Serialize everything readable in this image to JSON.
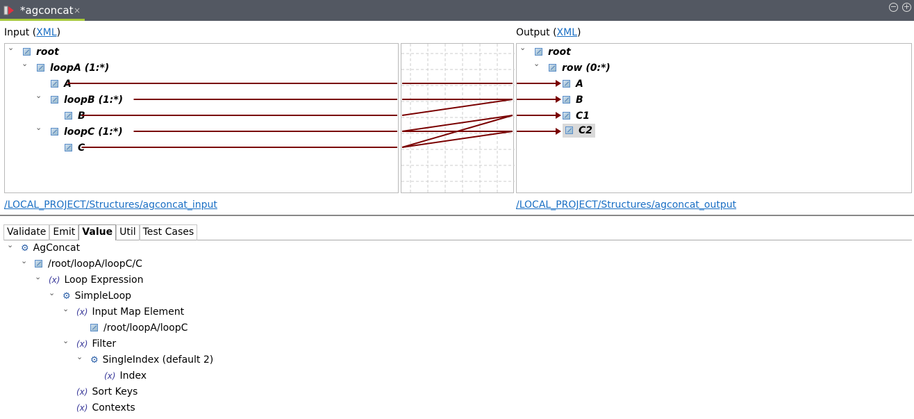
{
  "editor_tab": {
    "title": "*agconcat",
    "close": "×"
  },
  "window_buttons": {
    "minimize": "−",
    "maximize": "+"
  },
  "input": {
    "label": "Input (",
    "link": "XML",
    "close": ")",
    "path": "/LOCAL_PROJECT/Structures/agconcat_input",
    "tree": [
      {
        "label": "root",
        "level": 0,
        "chev": true
      },
      {
        "label": "loopA (1:*)",
        "level": 1,
        "chev": true
      },
      {
        "label": "A",
        "level": 2,
        "chev": false
      },
      {
        "label": "loopB (1:*)",
        "level": 2,
        "chev": true
      },
      {
        "label": "B",
        "level": 3,
        "chev": false
      },
      {
        "label": "loopC (1:*)",
        "level": 2,
        "chev": true
      },
      {
        "label": "C",
        "level": 3,
        "chev": false
      }
    ]
  },
  "output": {
    "label": "Output (",
    "link": "XML",
    "close": ")",
    "path": "/LOCAL_PROJECT/Structures/agconcat_output",
    "tree": [
      {
        "label": "root",
        "level": 0,
        "chev": true
      },
      {
        "label": "row (0:*)",
        "level": 1,
        "chev": true
      },
      {
        "label": "A",
        "level": 2,
        "chev": false
      },
      {
        "label": "B",
        "level": 2,
        "chev": false
      },
      {
        "label": "C1",
        "level": 2,
        "chev": false
      },
      {
        "label": "C2",
        "level": 2,
        "chev": false,
        "selected": true
      }
    ]
  },
  "mappings": [
    [
      "A",
      "A"
    ],
    [
      "loopB (1:*)",
      "B"
    ],
    [
      "B",
      "B"
    ],
    [
      "loopC (1:*)",
      "C1"
    ],
    [
      "loopC (1:*)",
      "C2"
    ],
    [
      "C",
      "C1"
    ],
    [
      "C",
      "C2"
    ]
  ],
  "mapping_color": "#7a0000",
  "bottom_tabs": [
    {
      "label": "Validate"
    },
    {
      "label": "Emit"
    },
    {
      "label": "Value",
      "active": true
    },
    {
      "label": "Util"
    },
    {
      "label": "Test Cases"
    }
  ],
  "value_tree": [
    {
      "label": "AgConcat",
      "level": 0,
      "icon": "gear",
      "chev": true
    },
    {
      "label": "/root/loopA/loopC/C",
      "level": 1,
      "icon": "element",
      "chev": true
    },
    {
      "label": "Loop Expression",
      "level": 2,
      "icon": "fx",
      "chev": true
    },
    {
      "label": "SimpleLoop",
      "level": 3,
      "icon": "gear",
      "chev": true
    },
    {
      "label": "Input Map Element",
      "level": 4,
      "icon": "fx",
      "chev": true
    },
    {
      "label": "/root/loopA/loopC",
      "level": 5,
      "icon": "element",
      "chev": false
    },
    {
      "label": "Filter",
      "level": 4,
      "icon": "fx",
      "chev": true
    },
    {
      "label": "SingleIndex (default 2)",
      "level": 5,
      "icon": "gear",
      "chev": true
    },
    {
      "label": "Index",
      "level": 6,
      "icon": "fx",
      "chev": false
    },
    {
      "label": "Sort Keys",
      "level": 4,
      "icon": "fx",
      "chev": false
    },
    {
      "label": "Contexts",
      "level": 4,
      "icon": "fx",
      "chev": false
    }
  ]
}
